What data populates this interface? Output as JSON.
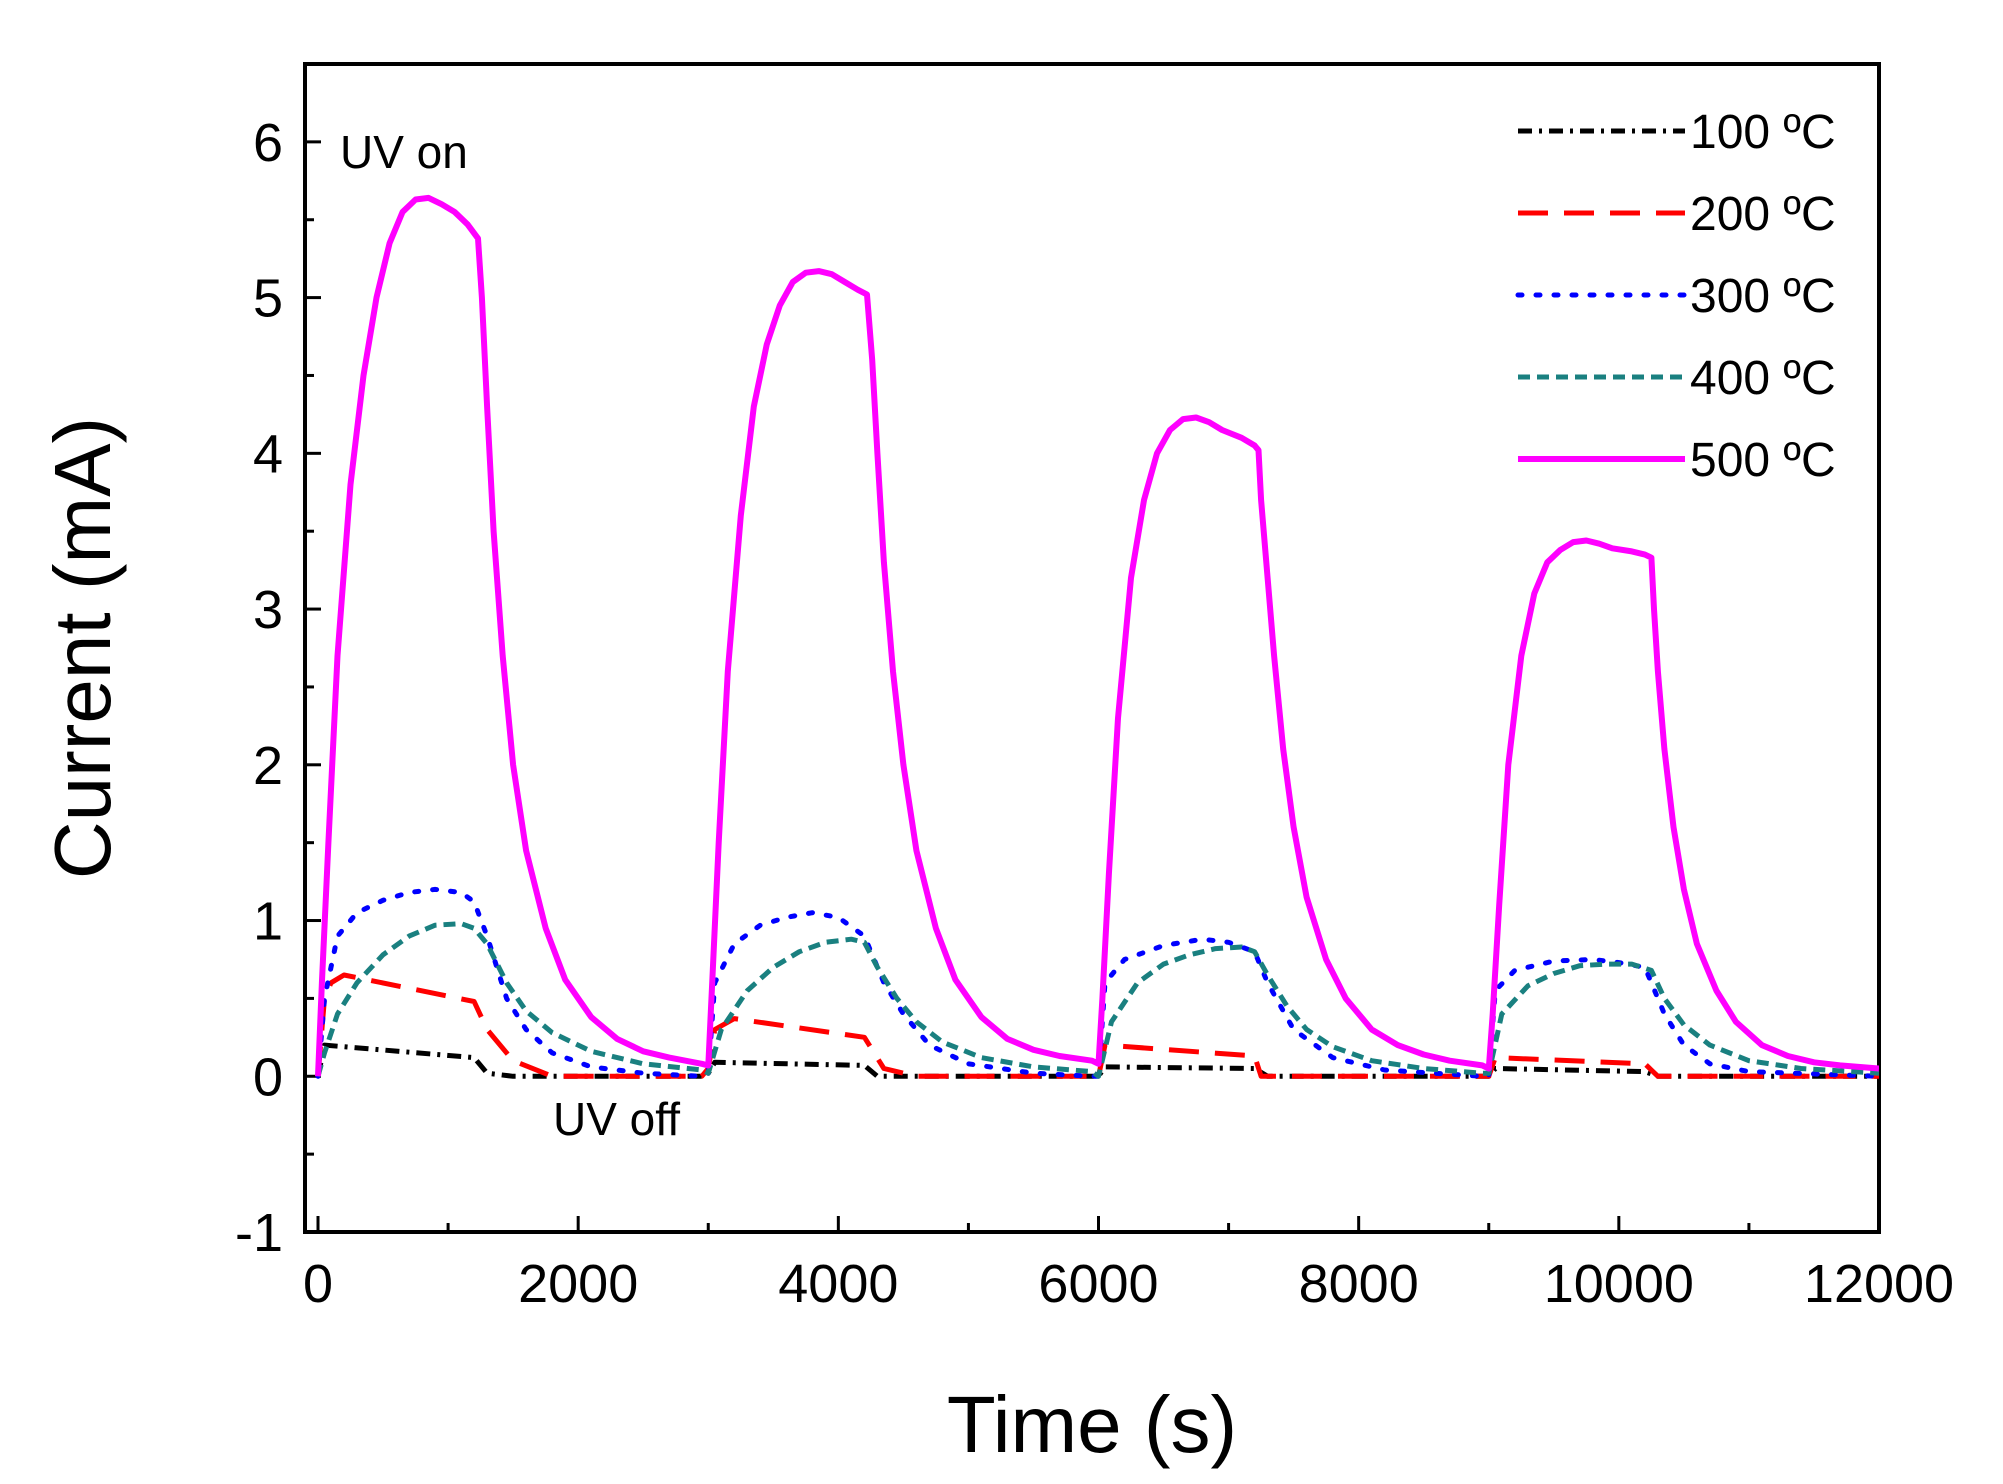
{
  "chart_data": {
    "type": "line",
    "title": "",
    "xlabel": "Time (s)",
    "ylabel": "Current (mA)",
    "xlim": [
      -100,
      12000
    ],
    "ylim": [
      -1,
      6.5
    ],
    "xticks": [
      0,
      2000,
      4000,
      6000,
      8000,
      10000,
      12000
    ],
    "xtick_labels": [
      "0",
      "2000",
      "4000",
      "6000",
      "8000",
      "10000",
      "12000"
    ],
    "yticks": [
      -1,
      0,
      1,
      2,
      3,
      4,
      5,
      6
    ],
    "ytick_labels": [
      "-1",
      "0",
      "1",
      "2",
      "3",
      "4",
      "5",
      "6"
    ],
    "legend_position": "top-right",
    "annotations": [
      {
        "text": "UV on",
        "x": 800,
        "y": 5.9
      },
      {
        "text": "UV off",
        "x": 2400,
        "y": -0.3
      }
    ],
    "series": [
      {
        "name": "100 ºC",
        "color": "#000000",
        "style": "dashdot",
        "points": [
          [
            0,
            0
          ],
          [
            50,
            0.2
          ],
          [
            1200,
            0.12
          ],
          [
            1300,
            0.02
          ],
          [
            1500,
            0
          ],
          [
            2950,
            0
          ],
          [
            3000,
            0.02
          ],
          [
            3050,
            0.09
          ],
          [
            4200,
            0.07
          ],
          [
            4300,
            0
          ],
          [
            5950,
            0
          ],
          [
            6000,
            0
          ],
          [
            6050,
            0.06
          ],
          [
            7200,
            0.05
          ],
          [
            7300,
            0
          ],
          [
            8950,
            0
          ],
          [
            9000,
            0
          ],
          [
            9050,
            0.05
          ],
          [
            10200,
            0.03
          ],
          [
            10300,
            0
          ],
          [
            12000,
            0
          ]
        ]
      },
      {
        "name": "200 ºC",
        "color": "#ff0000",
        "style": "dashed",
        "points": [
          [
            0,
            0
          ],
          [
            50,
            0.5
          ],
          [
            100,
            0.6
          ],
          [
            200,
            0.65
          ],
          [
            1200,
            0.48
          ],
          [
            1300,
            0.3
          ],
          [
            1500,
            0.1
          ],
          [
            1800,
            0
          ],
          [
            2950,
            0
          ],
          [
            3000,
            0.05
          ],
          [
            3050,
            0.3
          ],
          [
            3200,
            0.37
          ],
          [
            4200,
            0.25
          ],
          [
            4350,
            0.05
          ],
          [
            4600,
            0
          ],
          [
            5950,
            0
          ],
          [
            6000,
            0
          ],
          [
            6050,
            0.2
          ],
          [
            7200,
            0.13
          ],
          [
            7250,
            0
          ],
          [
            8950,
            0
          ],
          [
            9000,
            0
          ],
          [
            9050,
            0.12
          ],
          [
            10200,
            0.08
          ],
          [
            10300,
            0
          ],
          [
            12000,
            0
          ]
        ]
      },
      {
        "name": "300 ºC",
        "color": "#0000ff",
        "style": "dotted",
        "points": [
          [
            0,
            0
          ],
          [
            50,
            0.5
          ],
          [
            150,
            0.9
          ],
          [
            300,
            1.05
          ],
          [
            500,
            1.13
          ],
          [
            700,
            1.18
          ],
          [
            900,
            1.2
          ],
          [
            1100,
            1.18
          ],
          [
            1200,
            1.12
          ],
          [
            1300,
            0.9
          ],
          [
            1450,
            0.5
          ],
          [
            1600,
            0.3
          ],
          [
            1800,
            0.15
          ],
          [
            2100,
            0.06
          ],
          [
            2500,
            0.02
          ],
          [
            2950,
            0
          ],
          [
            3000,
            0.02
          ],
          [
            3050,
            0.6
          ],
          [
            3200,
            0.85
          ],
          [
            3400,
            0.97
          ],
          [
            3600,
            1.02
          ],
          [
            3800,
            1.05
          ],
          [
            4000,
            1.02
          ],
          [
            4200,
            0.9
          ],
          [
            4350,
            0.6
          ],
          [
            4500,
            0.4
          ],
          [
            4700,
            0.2
          ],
          [
            5000,
            0.08
          ],
          [
            5500,
            0.02
          ],
          [
            5950,
            0
          ],
          [
            6000,
            0
          ],
          [
            6050,
            0.6
          ],
          [
            6200,
            0.75
          ],
          [
            6500,
            0.84
          ],
          [
            6800,
            0.88
          ],
          [
            7000,
            0.86
          ],
          [
            7200,
            0.8
          ],
          [
            7300,
            0.6
          ],
          [
            7500,
            0.3
          ],
          [
            7800,
            0.12
          ],
          [
            8200,
            0.04
          ],
          [
            8950,
            0
          ],
          [
            9000,
            0
          ],
          [
            9050,
            0.55
          ],
          [
            9200,
            0.68
          ],
          [
            9500,
            0.74
          ],
          [
            9800,
            0.75
          ],
          [
            10000,
            0.73
          ],
          [
            10200,
            0.7
          ],
          [
            10350,
            0.4
          ],
          [
            10500,
            0.2
          ],
          [
            10700,
            0.08
          ],
          [
            11000,
            0.03
          ],
          [
            12000,
            0
          ]
        ]
      },
      {
        "name": "400 ºC",
        "color": "#1a8080",
        "style": "short-dashed",
        "points": [
          [
            0,
            0
          ],
          [
            50,
            0.15
          ],
          [
            150,
            0.4
          ],
          [
            300,
            0.6
          ],
          [
            500,
            0.78
          ],
          [
            700,
            0.9
          ],
          [
            900,
            0.97
          ],
          [
            1100,
            0.98
          ],
          [
            1200,
            0.95
          ],
          [
            1300,
            0.85
          ],
          [
            1450,
            0.6
          ],
          [
            1600,
            0.42
          ],
          [
            1800,
            0.28
          ],
          [
            2100,
            0.16
          ],
          [
            2500,
            0.08
          ],
          [
            2950,
            0.04
          ],
          [
            3000,
            0.02
          ],
          [
            3100,
            0.3
          ],
          [
            3300,
            0.55
          ],
          [
            3500,
            0.7
          ],
          [
            3700,
            0.8
          ],
          [
            3900,
            0.86
          ],
          [
            4100,
            0.88
          ],
          [
            4200,
            0.86
          ],
          [
            4300,
            0.7
          ],
          [
            4450,
            0.5
          ],
          [
            4600,
            0.35
          ],
          [
            4800,
            0.22
          ],
          [
            5100,
            0.12
          ],
          [
            5500,
            0.06
          ],
          [
            5950,
            0.03
          ],
          [
            6000,
            0
          ],
          [
            6100,
            0.35
          ],
          [
            6300,
            0.6
          ],
          [
            6500,
            0.72
          ],
          [
            6700,
            0.78
          ],
          [
            6900,
            0.82
          ],
          [
            7100,
            0.83
          ],
          [
            7200,
            0.8
          ],
          [
            7300,
            0.65
          ],
          [
            7450,
            0.45
          ],
          [
            7600,
            0.3
          ],
          [
            7800,
            0.19
          ],
          [
            8100,
            0.1
          ],
          [
            8500,
            0.05
          ],
          [
            8950,
            0.02
          ],
          [
            9000,
            0.02
          ],
          [
            9100,
            0.4
          ],
          [
            9300,
            0.58
          ],
          [
            9500,
            0.66
          ],
          [
            9700,
            0.71
          ],
          [
            9900,
            0.72
          ],
          [
            10100,
            0.72
          ],
          [
            10250,
            0.68
          ],
          [
            10350,
            0.5
          ],
          [
            10500,
            0.33
          ],
          [
            10700,
            0.2
          ],
          [
            11000,
            0.1
          ],
          [
            11400,
            0.05
          ],
          [
            12000,
            0.02
          ]
        ]
      },
      {
        "name": "500 ºC",
        "color": "#ff00ff",
        "style": "solid",
        "points": [
          [
            0,
            0
          ],
          [
            30,
            0.6
          ],
          [
            80,
            1.5
          ],
          [
            150,
            2.7
          ],
          [
            250,
            3.8
          ],
          [
            350,
            4.5
          ],
          [
            450,
            5.0
          ],
          [
            550,
            5.35
          ],
          [
            650,
            5.55
          ],
          [
            750,
            5.63
          ],
          [
            850,
            5.64
          ],
          [
            950,
            5.6
          ],
          [
            1050,
            5.55
          ],
          [
            1150,
            5.47
          ],
          [
            1230,
            5.38
          ],
          [
            1260,
            5.0
          ],
          [
            1300,
            4.3
          ],
          [
            1350,
            3.5
          ],
          [
            1420,
            2.7
          ],
          [
            1500,
            2.0
          ],
          [
            1600,
            1.45
          ],
          [
            1750,
            0.95
          ],
          [
            1900,
            0.62
          ],
          [
            2100,
            0.38
          ],
          [
            2300,
            0.24
          ],
          [
            2500,
            0.16
          ],
          [
            2700,
            0.12
          ],
          [
            2950,
            0.08
          ],
          [
            3000,
            0.07
          ],
          [
            3030,
            0.6
          ],
          [
            3080,
            1.5
          ],
          [
            3150,
            2.6
          ],
          [
            3250,
            3.6
          ],
          [
            3350,
            4.3
          ],
          [
            3450,
            4.7
          ],
          [
            3550,
            4.95
          ],
          [
            3650,
            5.1
          ],
          [
            3750,
            5.16
          ],
          [
            3850,
            5.17
          ],
          [
            3950,
            5.15
          ],
          [
            4050,
            5.1
          ],
          [
            4150,
            5.05
          ],
          [
            4220,
            5.02
          ],
          [
            4260,
            4.6
          ],
          [
            4300,
            4.0
          ],
          [
            4350,
            3.3
          ],
          [
            4420,
            2.6
          ],
          [
            4500,
            2.0
          ],
          [
            4600,
            1.45
          ],
          [
            4750,
            0.95
          ],
          [
            4900,
            0.62
          ],
          [
            5100,
            0.38
          ],
          [
            5300,
            0.24
          ],
          [
            5500,
            0.17
          ],
          [
            5700,
            0.13
          ],
          [
            5950,
            0.1
          ],
          [
            6000,
            0.08
          ],
          [
            6030,
            0.5
          ],
          [
            6080,
            1.3
          ],
          [
            6150,
            2.3
          ],
          [
            6250,
            3.2
          ],
          [
            6350,
            3.7
          ],
          [
            6450,
            4.0
          ],
          [
            6550,
            4.15
          ],
          [
            6650,
            4.22
          ],
          [
            6750,
            4.23
          ],
          [
            6850,
            4.2
          ],
          [
            6950,
            4.15
          ],
          [
            7100,
            4.1
          ],
          [
            7200,
            4.05
          ],
          [
            7230,
            4.02
          ],
          [
            7250,
            3.7
          ],
          [
            7300,
            3.2
          ],
          [
            7350,
            2.7
          ],
          [
            7420,
            2.1
          ],
          [
            7500,
            1.6
          ],
          [
            7600,
            1.15
          ],
          [
            7750,
            0.75
          ],
          [
            7900,
            0.5
          ],
          [
            8100,
            0.3
          ],
          [
            8300,
            0.2
          ],
          [
            8500,
            0.14
          ],
          [
            8700,
            0.1
          ],
          [
            8950,
            0.07
          ],
          [
            9000,
            0.05
          ],
          [
            9030,
            0.4
          ],
          [
            9080,
            1.1
          ],
          [
            9150,
            2.0
          ],
          [
            9250,
            2.7
          ],
          [
            9350,
            3.1
          ],
          [
            9450,
            3.3
          ],
          [
            9550,
            3.38
          ],
          [
            9650,
            3.43
          ],
          [
            9750,
            3.44
          ],
          [
            9850,
            3.42
          ],
          [
            9950,
            3.39
          ],
          [
            10100,
            3.37
          ],
          [
            10200,
            3.35
          ],
          [
            10250,
            3.33
          ],
          [
            10270,
            3.0
          ],
          [
            10300,
            2.6
          ],
          [
            10350,
            2.1
          ],
          [
            10420,
            1.6
          ],
          [
            10500,
            1.2
          ],
          [
            10600,
            0.85
          ],
          [
            10750,
            0.55
          ],
          [
            10900,
            0.35
          ],
          [
            11100,
            0.2
          ],
          [
            11300,
            0.13
          ],
          [
            11500,
            0.09
          ],
          [
            11700,
            0.07
          ],
          [
            12000,
            0.05
          ]
        ]
      }
    ]
  }
}
